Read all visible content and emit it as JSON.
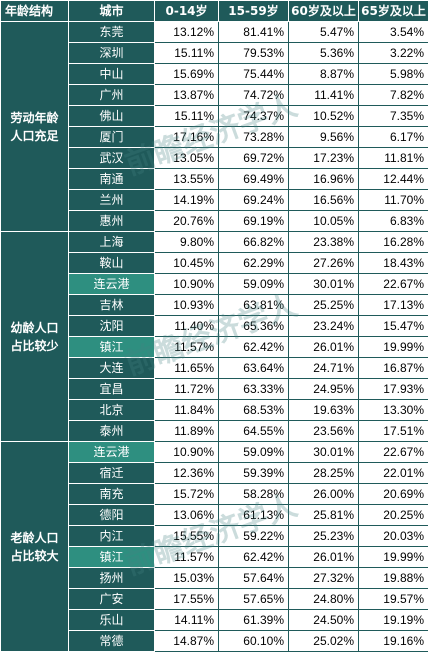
{
  "headers": [
    "年龄结构",
    "城市",
    "0-14岁",
    "15-59岁",
    "60岁及以上",
    "65岁及以上"
  ],
  "groups": [
    {
      "label": "劳动年龄人口充足",
      "rows": [
        {
          "city": "东莞",
          "v": [
            "13.12%",
            "81.41%",
            "5.47%",
            "3.54%"
          ]
        },
        {
          "city": "深圳",
          "v": [
            "15.11%",
            "79.53%",
            "5.36%",
            "3.22%"
          ]
        },
        {
          "city": "中山",
          "v": [
            "15.69%",
            "75.44%",
            "8.87%",
            "5.98%"
          ]
        },
        {
          "city": "广州",
          "v": [
            "13.87%",
            "74.72%",
            "11.41%",
            "7.82%"
          ]
        },
        {
          "city": "佛山",
          "v": [
            "15.11%",
            "74.37%",
            "10.52%",
            "7.35%"
          ]
        },
        {
          "city": "厦门",
          "v": [
            "17.16%",
            "73.28%",
            "9.56%",
            "6.17%"
          ]
        },
        {
          "city": "武汉",
          "v": [
            "13.05%",
            "69.72%",
            "17.23%",
            "11.81%"
          ]
        },
        {
          "city": "南通",
          "v": [
            "13.55%",
            "69.49%",
            "16.96%",
            "12.44%"
          ]
        },
        {
          "city": "兰州",
          "v": [
            "14.19%",
            "69.24%",
            "16.56%",
            "11.70%"
          ]
        },
        {
          "city": "惠州",
          "v": [
            "20.76%",
            "69.19%",
            "10.05%",
            "6.83%"
          ]
        }
      ]
    },
    {
      "label": "幼龄人口占比较少",
      "rows": [
        {
          "city": "上海",
          "v": [
            "9.80%",
            "66.82%",
            "23.38%",
            "16.28%"
          ]
        },
        {
          "city": "鞍山",
          "v": [
            "10.45%",
            "62.29%",
            "27.26%",
            "18.43%"
          ]
        },
        {
          "city": "连云港",
          "v": [
            "10.90%",
            "59.09%",
            "30.01%",
            "22.67%"
          ],
          "hl": true
        },
        {
          "city": "吉林",
          "v": [
            "10.93%",
            "63.81%",
            "25.25%",
            "17.13%"
          ]
        },
        {
          "city": "沈阳",
          "v": [
            "11.40%",
            "65.36%",
            "23.24%",
            "15.47%"
          ]
        },
        {
          "city": "镇江",
          "v": [
            "11.57%",
            "62.42%",
            "26.01%",
            "19.99%"
          ],
          "hl": true
        },
        {
          "city": "大连",
          "v": [
            "11.65%",
            "63.64%",
            "24.71%",
            "16.87%"
          ]
        },
        {
          "city": "宜昌",
          "v": [
            "11.72%",
            "63.33%",
            "24.95%",
            "17.93%"
          ]
        },
        {
          "city": "北京",
          "v": [
            "11.84%",
            "68.53%",
            "19.63%",
            "13.30%"
          ]
        },
        {
          "city": "泰州",
          "v": [
            "11.89%",
            "64.55%",
            "23.56%",
            "17.51%"
          ]
        }
      ]
    },
    {
      "label": "老龄人口占比较大",
      "rows": [
        {
          "city": "连云港",
          "v": [
            "10.90%",
            "59.09%",
            "30.01%",
            "22.67%"
          ],
          "hl": true
        },
        {
          "city": "宿迁",
          "v": [
            "12.36%",
            "59.39%",
            "28.25%",
            "22.01%"
          ]
        },
        {
          "city": "南充",
          "v": [
            "15.72%",
            "58.28%",
            "26.00%",
            "20.69%"
          ]
        },
        {
          "city": "德阳",
          "v": [
            "13.06%",
            "61.13%",
            "25.81%",
            "20.25%"
          ]
        },
        {
          "city": "内江",
          "v": [
            "15.55%",
            "59.22%",
            "25.23%",
            "20.03%"
          ]
        },
        {
          "city": "镇江",
          "v": [
            "11.57%",
            "62.42%",
            "26.01%",
            "19.99%"
          ],
          "hl": true
        },
        {
          "city": "扬州",
          "v": [
            "15.03%",
            "57.64%",
            "27.32%",
            "19.88%"
          ]
        },
        {
          "city": "广安",
          "v": [
            "17.55%",
            "57.65%",
            "24.80%",
            "19.57%"
          ]
        },
        {
          "city": "乐山",
          "v": [
            "14.11%",
            "61.39%",
            "24.50%",
            "19.19%"
          ]
        },
        {
          "city": "常德",
          "v": [
            "14.87%",
            "60.10%",
            "25.02%",
            "19.16%"
          ]
        }
      ]
    }
  ],
  "watermark": "前瞻经济学人",
  "colors": {
    "header_bg": "#1f5a5a",
    "highlight_bg": "#2e8f80"
  }
}
